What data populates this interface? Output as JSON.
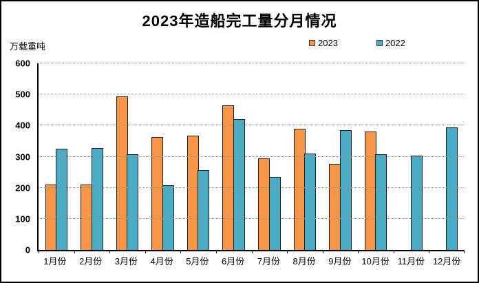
{
  "chart_data": {
    "type": "bar",
    "title": "2023年造船完工量分月情况",
    "ylabel": "万载重吨",
    "xlabel": "",
    "categories": [
      "1月份",
      "2月份",
      "3月份",
      "4月份",
      "5月份",
      "6月份",
      "7月份",
      "8月份",
      "9月份",
      "10月份",
      "11月份",
      "12月份"
    ],
    "series": [
      {
        "name": "2023",
        "color": "#F79646",
        "border_color": "#1F1F1F",
        "values": [
          211,
          211,
          494,
          363,
          368,
          465,
          295,
          389,
          276,
          381,
          null,
          null
        ]
      },
      {
        "name": "2022",
        "color": "#4BACC6",
        "border_color": "#1F1F1F",
        "values": [
          326,
          328,
          308,
          209,
          256,
          421,
          234,
          310,
          386,
          308,
          303,
          395
        ]
      }
    ],
    "ylim": [
      0,
      600
    ],
    "ytick_interval": 100,
    "yticks": [
      0,
      100,
      200,
      300,
      400,
      500,
      600
    ],
    "grid": "horizontal-dotted",
    "legend_position": "top-right"
  }
}
